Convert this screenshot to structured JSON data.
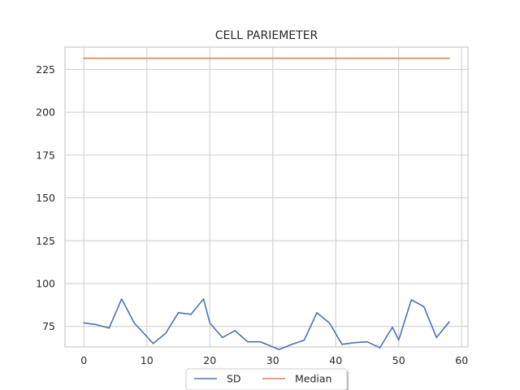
{
  "chart_data": {
    "type": "line",
    "title": "CELL PARIEMETER",
    "xlabel": "",
    "ylabel": "",
    "xlim": [
      -3,
      61
    ],
    "ylim": [
      63,
      238
    ],
    "x_ticks": [
      0,
      10,
      20,
      30,
      40,
      50,
      60
    ],
    "y_ticks": [
      75,
      100,
      125,
      150,
      175,
      200,
      225
    ],
    "grid": true,
    "legend_position": "bottom-center",
    "series": [
      {
        "name": "SD",
        "color": "#4c72b0",
        "x": [
          0,
          2,
          4,
          6,
          8,
          11,
          13,
          15,
          17,
          19,
          20,
          22,
          24,
          26,
          28,
          31,
          33,
          35,
          37,
          39,
          41,
          43,
          45,
          47,
          49,
          50,
          52,
          54,
          56,
          58
        ],
        "y": [
          77,
          76,
          74,
          91,
          77,
          65,
          71,
          83,
          82,
          91,
          77,
          68.5,
          72.5,
          66,
          66,
          61.5,
          64.5,
          67,
          83,
          77,
          64.5,
          65.5,
          66,
          62.5,
          74.5,
          67,
          90.5,
          86.5,
          68.5,
          77.5
        ]
      },
      {
        "name": "Median",
        "color": "#dd8452",
        "x": [
          0,
          58
        ],
        "y": [
          231.5,
          231.5
        ]
      }
    ]
  }
}
